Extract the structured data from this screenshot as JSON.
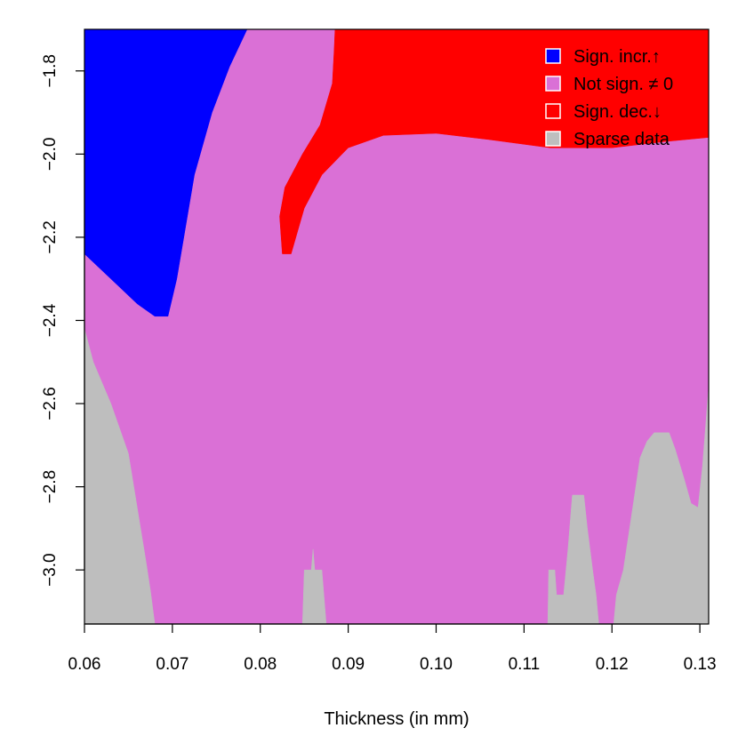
{
  "chart_data": {
    "type": "heatmap",
    "title": "",
    "xlabel": "Thickness (in mm)",
    "ylabel": "",
    "xlim": [
      0.06,
      0.131
    ],
    "ylim": [
      -3.13,
      -1.7
    ],
    "x_ticks": [
      0.06,
      0.07,
      0.08,
      0.09,
      0.1,
      0.11,
      0.12,
      0.13
    ],
    "x_tick_labels": [
      "0.06",
      "0.07",
      "0.08",
      "0.09",
      "0.10",
      "0.11",
      "0.12",
      "0.13"
    ],
    "y_ticks": [
      -1.8,
      -2.0,
      -2.2,
      -2.4,
      -2.6,
      -2.8,
      -3.0
    ],
    "y_tick_labels": [
      "−1.8",
      "−2.0",
      "−2.2",
      "−2.4",
      "−2.6",
      "−2.8",
      "−3.0"
    ],
    "background_category": "not_sign",
    "categories": [
      {
        "key": "sign_incr",
        "label": "Sign. incr.↑",
        "color": "#0000ff"
      },
      {
        "key": "not_sign",
        "label": "Not sign. ≠ 0",
        "color": "#da70d6"
      },
      {
        "key": "sign_dec",
        "label": "Sign. dec.↓",
        "color": "#ff0000"
      },
      {
        "key": "sparse",
        "label": "Sparse data",
        "color": "#bebebe"
      }
    ],
    "legend_position": "top-right",
    "regions": [
      {
        "category": "sign_incr",
        "polygon": [
          [
            0.06,
            -1.7
          ],
          [
            0.0785,
            -1.7
          ],
          [
            0.0765,
            -1.79
          ],
          [
            0.0745,
            -1.9
          ],
          [
            0.0725,
            -2.05
          ],
          [
            0.0705,
            -2.3
          ],
          [
            0.0695,
            -2.39
          ],
          [
            0.068,
            -2.39
          ],
          [
            0.066,
            -2.36
          ],
          [
            0.063,
            -2.3
          ],
          [
            0.06,
            -2.24
          ]
        ]
      },
      {
        "category": "sign_dec",
        "polygon": [
          [
            0.0885,
            -1.7
          ],
          [
            0.131,
            -1.7
          ],
          [
            0.131,
            -1.96
          ],
          [
            0.126,
            -1.97
          ],
          [
            0.12,
            -1.985
          ],
          [
            0.113,
            -1.985
          ],
          [
            0.106,
            -1.965
          ],
          [
            0.1,
            -1.95
          ],
          [
            0.094,
            -1.955
          ],
          [
            0.09,
            -1.985
          ],
          [
            0.087,
            -2.05
          ],
          [
            0.085,
            -2.13
          ],
          [
            0.0835,
            -2.24
          ],
          [
            0.0825,
            -2.24
          ],
          [
            0.0822,
            -2.15
          ],
          [
            0.0828,
            -2.08
          ],
          [
            0.0848,
            -2.0
          ],
          [
            0.0868,
            -1.93
          ],
          [
            0.0882,
            -1.83
          ],
          [
            0.0884,
            -1.75
          ]
        ]
      },
      {
        "category": "sparse",
        "polygon": [
          [
            0.06,
            -2.42
          ],
          [
            0.061,
            -2.5
          ],
          [
            0.063,
            -2.6
          ],
          [
            0.065,
            -2.72
          ],
          [
            0.066,
            -2.85
          ],
          [
            0.067,
            -2.98
          ],
          [
            0.0675,
            -3.05
          ],
          [
            0.068,
            -3.13
          ],
          [
            0.06,
            -3.13
          ]
        ]
      },
      {
        "category": "sparse",
        "polygon": [
          [
            0.0848,
            -3.13
          ],
          [
            0.085,
            -3.0
          ],
          [
            0.0858,
            -3.0
          ],
          [
            0.086,
            -2.95
          ],
          [
            0.0862,
            -3.0
          ],
          [
            0.087,
            -3.0
          ],
          [
            0.0875,
            -3.13
          ]
        ]
      },
      {
        "category": "sparse",
        "polygon": [
          [
            0.1127,
            -3.13
          ],
          [
            0.1128,
            -3.0
          ],
          [
            0.1135,
            -3.0
          ],
          [
            0.1137,
            -3.06
          ],
          [
            0.1145,
            -3.06
          ],
          [
            0.115,
            -2.95
          ],
          [
            0.1155,
            -2.82
          ],
          [
            0.1168,
            -2.82
          ],
          [
            0.1172,
            -2.9
          ],
          [
            0.1178,
            -3.0
          ],
          [
            0.1182,
            -3.06
          ],
          [
            0.1185,
            -3.13
          ]
        ]
      },
      {
        "category": "sparse",
        "polygon": [
          [
            0.1202,
            -3.13
          ],
          [
            0.1205,
            -3.06
          ],
          [
            0.1213,
            -3.0
          ],
          [
            0.1218,
            -2.93
          ],
          [
            0.1225,
            -2.83
          ],
          [
            0.1232,
            -2.73
          ],
          [
            0.124,
            -2.69
          ],
          [
            0.1248,
            -2.67
          ],
          [
            0.1265,
            -2.67
          ],
          [
            0.1272,
            -2.71
          ],
          [
            0.1282,
            -2.78
          ],
          [
            0.129,
            -2.84
          ],
          [
            0.1298,
            -2.85
          ],
          [
            0.1303,
            -2.75
          ],
          [
            0.131,
            -2.56
          ],
          [
            0.131,
            -3.13
          ]
        ]
      }
    ]
  }
}
